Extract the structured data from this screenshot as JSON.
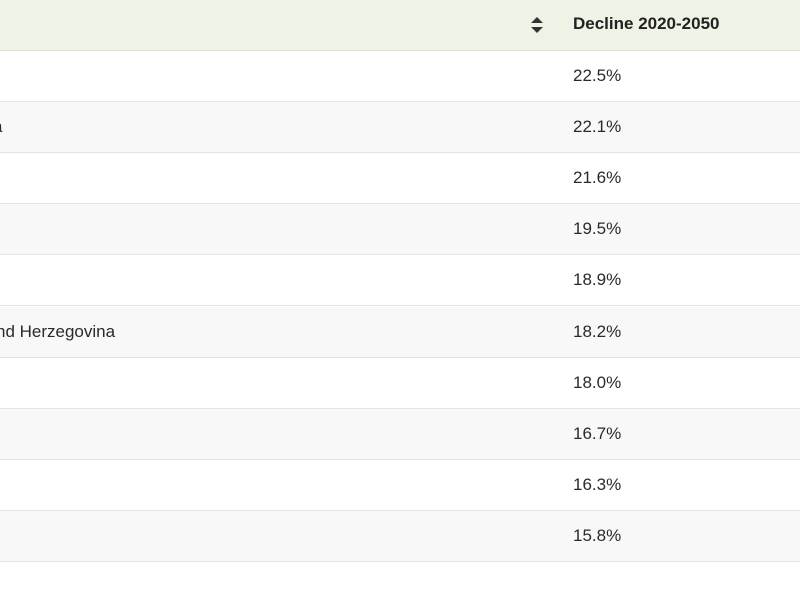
{
  "table": {
    "header": {
      "country_label": "",
      "decline_label": "Decline 2020-2050",
      "sort_icon": "sort-updown-icon"
    },
    "rows": [
      {
        "country": "",
        "decline": "22.5%"
      },
      {
        "country": "a",
        "decline": "22.1%"
      },
      {
        "country": "",
        "decline": "21.6%"
      },
      {
        "country": "",
        "decline": "19.5%"
      },
      {
        "country": "",
        "decline": "18.9%"
      },
      {
        "country": "nd Herzegovina",
        "decline": "18.2%"
      },
      {
        "country": "",
        "decline": "18.0%"
      },
      {
        "country": "",
        "decline": "16.7%"
      },
      {
        "country": "",
        "decline": "16.3%"
      },
      {
        "country": "",
        "decline": "15.8%"
      }
    ]
  },
  "colors": {
    "header_bg": "#eef3e6",
    "row_alt_bg": "#f8f8f8",
    "border": "#e4e4e4",
    "text": "#222222"
  }
}
